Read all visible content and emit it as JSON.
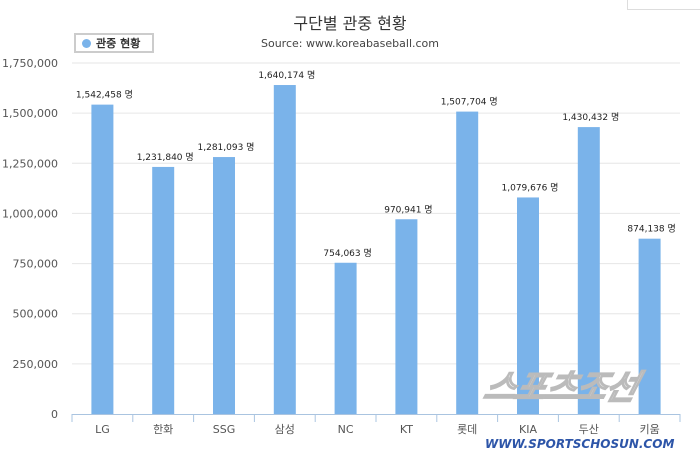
{
  "chart_data": {
    "type": "bar",
    "title": "구단별 관중 현황",
    "subtitle": "Source: www.koreabaseball.com",
    "legend": {
      "label": "관중 현황",
      "placement": "top-left"
    },
    "categories": [
      "LG",
      "한화",
      "SSG",
      "삼성",
      "NC",
      "KT",
      "롯데",
      "KIA",
      "두산",
      "키움"
    ],
    "series": [
      {
        "name": "관중 현황",
        "values": [
          1542458,
          1231840,
          1281093,
          1640174,
          754063,
          970941,
          1507704,
          1079676,
          1430432,
          874138
        ]
      }
    ],
    "data_labels": [
      "1,542,458 명",
      "1,231,840 명",
      "1,281,093 명",
      "1,640,174 명",
      "754,063 명",
      "970,941 명",
      "1,507,704 명",
      "1,079,676 명",
      "1,430,432 명",
      "874,138 명"
    ],
    "yticks": [
      "0",
      "250,000",
      "500,000",
      "750,000",
      "1,000,000",
      "1,250,000",
      "1,500,000",
      "1,750,000"
    ],
    "ylim": [
      0,
      1750000
    ],
    "grid": true,
    "bar_color": "#7ab3ea"
  },
  "watermark": {
    "logo": "스포츠조선",
    "url": "WWW.SPORTSCHOSUN.COM"
  }
}
